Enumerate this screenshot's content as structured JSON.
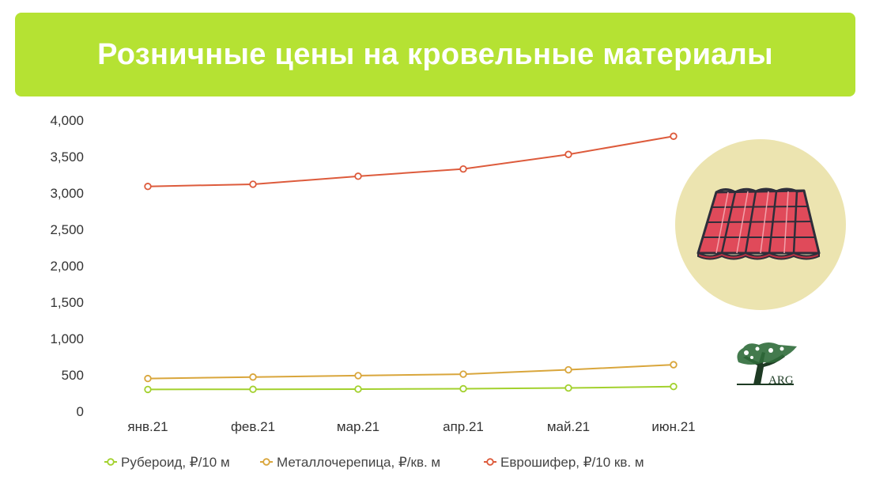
{
  "title": "Розничные цены на кровельные материалы",
  "logo": {
    "text": "ARG"
  },
  "chart_data": {
    "type": "line",
    "categories": [
      "янв.21",
      "фев.21",
      "мар.21",
      "апр.21",
      "май.21",
      "июн.21"
    ],
    "ylim": [
      0,
      4000
    ],
    "yticks": [
      0,
      500,
      1000,
      1500,
      2000,
      2500,
      3000,
      3500,
      4000
    ],
    "ytick_labels": [
      "0",
      "500",
      "1,000",
      "1,500",
      "2,000",
      "2,500",
      "3,000",
      "3,500",
      "4,000"
    ],
    "grid": false,
    "legend_position": "bottom",
    "series": [
      {
        "name": "Рубероид, ₽/10 м",
        "color": "#a3d12e",
        "values": [
          300,
          302,
          305,
          310,
          320,
          340
        ]
      },
      {
        "name": "Металлочерепица, ₽/кв. м",
        "color": "#d9a63c",
        "values": [
          450,
          470,
          490,
          510,
          570,
          640
        ]
      },
      {
        "name": "Еврошифер, ₽/10 кв. м",
        "color": "#dd5b3c",
        "values": [
          3090,
          3120,
          3230,
          3330,
          3530,
          3780
        ]
      }
    ]
  },
  "colors": {
    "banner": "#b5e233",
    "circle": "#ece4b0",
    "roof": "#e04a5a"
  },
  "icons": [
    "roof-tile-icon",
    "tree-logo-icon"
  ]
}
